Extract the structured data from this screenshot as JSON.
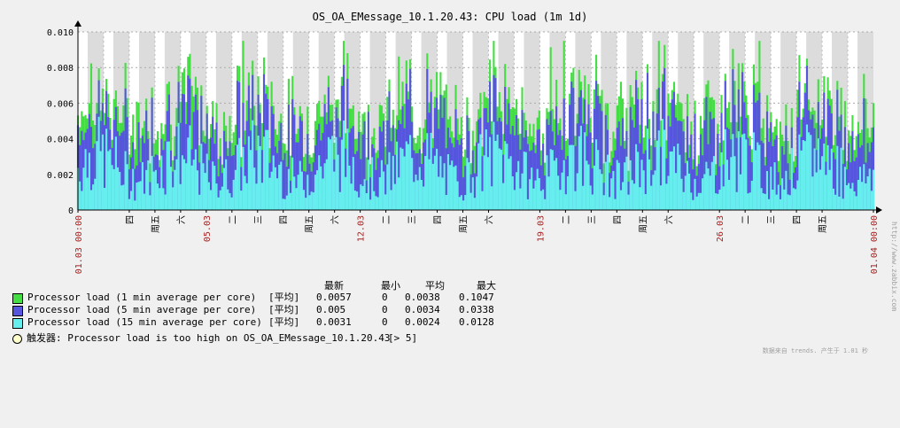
{
  "chart_data": {
    "type": "line",
    "title": "OS_OA_EMessage_10.1.20.43: CPU load (1m 1d)",
    "ylim": [
      0,
      0.01
    ],
    "yticks": [
      "0",
      "0.002",
      "0.004",
      "0.006",
      "0.008",
      "0.010"
    ],
    "x_range": [
      "01.03 00:00",
      "01.04 00:00"
    ],
    "x_tick_labels": [
      {
        "day": 1,
        "label": "01.03 00:00",
        "color": "#aa2222"
      },
      {
        "day": 3,
        "label": "四",
        "color": "#000000"
      },
      {
        "day": 4,
        "label": "周五",
        "color": "#000000"
      },
      {
        "day": 5,
        "label": "六",
        "color": "#000000"
      },
      {
        "day": 6,
        "label": "05.03",
        "color": "#aa2222"
      },
      {
        "day": 7,
        "label": "二",
        "color": "#000000"
      },
      {
        "day": 8,
        "label": "三",
        "color": "#000000"
      },
      {
        "day": 9,
        "label": "四",
        "color": "#000000"
      },
      {
        "day": 10,
        "label": "周五",
        "color": "#000000"
      },
      {
        "day": 11,
        "label": "六",
        "color": "#000000"
      },
      {
        "day": 12,
        "label": "12.03",
        "color": "#aa2222"
      },
      {
        "day": 13,
        "label": "二",
        "color": "#000000"
      },
      {
        "day": 14,
        "label": "三",
        "color": "#000000"
      },
      {
        "day": 15,
        "label": "四",
        "color": "#000000"
      },
      {
        "day": 16,
        "label": "周五",
        "color": "#000000"
      },
      {
        "day": 17,
        "label": "六",
        "color": "#000000"
      },
      {
        "day": 19,
        "label": "19.03",
        "color": "#aa2222"
      },
      {
        "day": 20,
        "label": "二",
        "color": "#000000"
      },
      {
        "day": 21,
        "label": "三",
        "color": "#000000"
      },
      {
        "day": 22,
        "label": "四",
        "color": "#000000"
      },
      {
        "day": 23,
        "label": "周五",
        "color": "#000000"
      },
      {
        "day": 24,
        "label": "六",
        "color": "#000000"
      },
      {
        "day": 26,
        "label": "26.03",
        "color": "#aa2222"
      },
      {
        "day": 27,
        "label": "二",
        "color": "#000000"
      },
      {
        "day": 28,
        "label": "三",
        "color": "#000000"
      },
      {
        "day": 29,
        "label": "四",
        "color": "#000000"
      },
      {
        "day": 30,
        "label": "周五",
        "color": "#000000"
      },
      {
        "day": 32,
        "label": "01.04 00:00",
        "color": "#aa2222"
      }
    ],
    "series": [
      {
        "name": "Processor load (1 min average per core)",
        "color": "#44dd44",
        "mean": 0.0038
      },
      {
        "name": "Processor load (5 min average per core)",
        "color": "#5555dd",
        "mean": 0.0034
      },
      {
        "name": "Processor load (15 min average per core)",
        "color": "#66eeee",
        "mean": 0.0024
      }
    ],
    "grid": true,
    "legend_position": "bottom"
  },
  "legend": {
    "headers": [
      "最新",
      "最小",
      "平均",
      "最大"
    ],
    "rows": [
      {
        "name": "Processor load (1 min average per core)",
        "tag": "[平均]",
        "color": "#44dd44",
        "last": "0.0057",
        "min": "0",
        "avg": "0.0038",
        "max": "0.1047"
      },
      {
        "name": "Processor load (5 min average per core)",
        "tag": "[平均]",
        "color": "#5555dd",
        "last": "0.005",
        "min": "0",
        "avg": "0.0034",
        "max": "0.0338"
      },
      {
        "name": "Processor load (15 min average per core)",
        "tag": "[平均]",
        "color": "#66eeee",
        "last": "0.0031",
        "min": "0",
        "avg": "0.0024",
        "max": "0.0128"
      }
    ]
  },
  "trigger": {
    "label": "触发器: Processor load is too high on OS_OA_EMessage_10.1.20.43",
    "threshold": "[> 5]"
  },
  "watermark": "http://www.zabbix.com",
  "footer_note": "数据来自 trends. 产生于 1.01 秒"
}
